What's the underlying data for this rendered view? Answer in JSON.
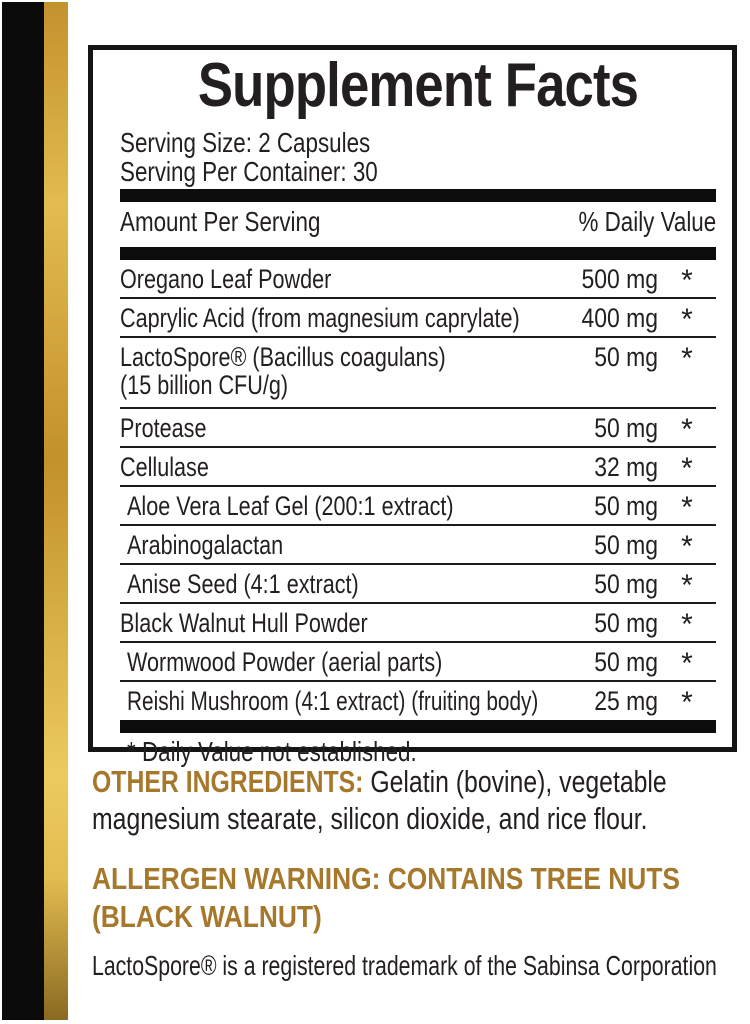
{
  "colors": {
    "label_text": "#231F20",
    "gold_heading": "#A6782C",
    "stripe_black": "#0B0B0C",
    "stripe_gold_light": "#ECCA60",
    "stripe_gold_dark": "#8A6A22"
  },
  "panel": {
    "title": "Supplement Facts",
    "serving_size": "Serving Size: 2 Capsules",
    "serving_per_container": "Serving Per Container: 30",
    "columns": {
      "amount": "Amount Per Serving",
      "daily_value": "% Daily Value"
    },
    "rows": [
      {
        "name": "Oregano Leaf Powder",
        "amount": "500 mg",
        "dv": "*",
        "indent": false
      },
      {
        "name": "Caprylic Acid (from magnesium caprylate)",
        "amount": "400 mg",
        "dv": "*",
        "indent": false
      },
      {
        "name": "LactoSpore® (Bacillus coagulans)",
        "name2": "(15 billion CFU/g)",
        "amount": "50 mg",
        "dv": "*",
        "indent": false
      },
      {
        "name": "Protease",
        "amount": "50 mg",
        "dv": "*",
        "indent": false
      },
      {
        "name": "Cellulase",
        "amount": "32 mg",
        "dv": "*",
        "indent": false
      },
      {
        "name": "Aloe Vera Leaf Gel (200:1 extract)",
        "amount": "50 mg",
        "dv": "*",
        "indent": true
      },
      {
        "name": "Arabinogalactan",
        "amount": "50 mg",
        "dv": "*",
        "indent": true
      },
      {
        "name": "Anise Seed (4:1 extract)",
        "amount": "50 mg",
        "dv": "*",
        "indent": true
      },
      {
        "name": "Black Walnut Hull Powder",
        "amount": "50 mg",
        "dv": "*",
        "indent": false
      },
      {
        "name": "Wormwood Powder (aerial parts)",
        "amount": "50 mg",
        "dv": "*",
        "indent": true
      },
      {
        "name": "Reishi Mushroom (4:1 extract) (fruiting body)",
        "amount": "25 mg",
        "dv": "*",
        "indent": true
      }
    ],
    "footnote": "* Daily Value not established."
  },
  "other_ingredients": {
    "heading": "OTHER INGREDIENTS:",
    "line1_rest": " Gelatin (bovine), vegetable",
    "line2": "magnesium stearate, silicon dioxide, and rice flour."
  },
  "allergen_warning": {
    "line1": "ALLERGEN WARNING: CONTAINS TREE NUTS",
    "line2": "(BLACK WALNUT)"
  },
  "trademark_note": "LactoSpore® is a registered trademark of the Sabinsa Corporation"
}
